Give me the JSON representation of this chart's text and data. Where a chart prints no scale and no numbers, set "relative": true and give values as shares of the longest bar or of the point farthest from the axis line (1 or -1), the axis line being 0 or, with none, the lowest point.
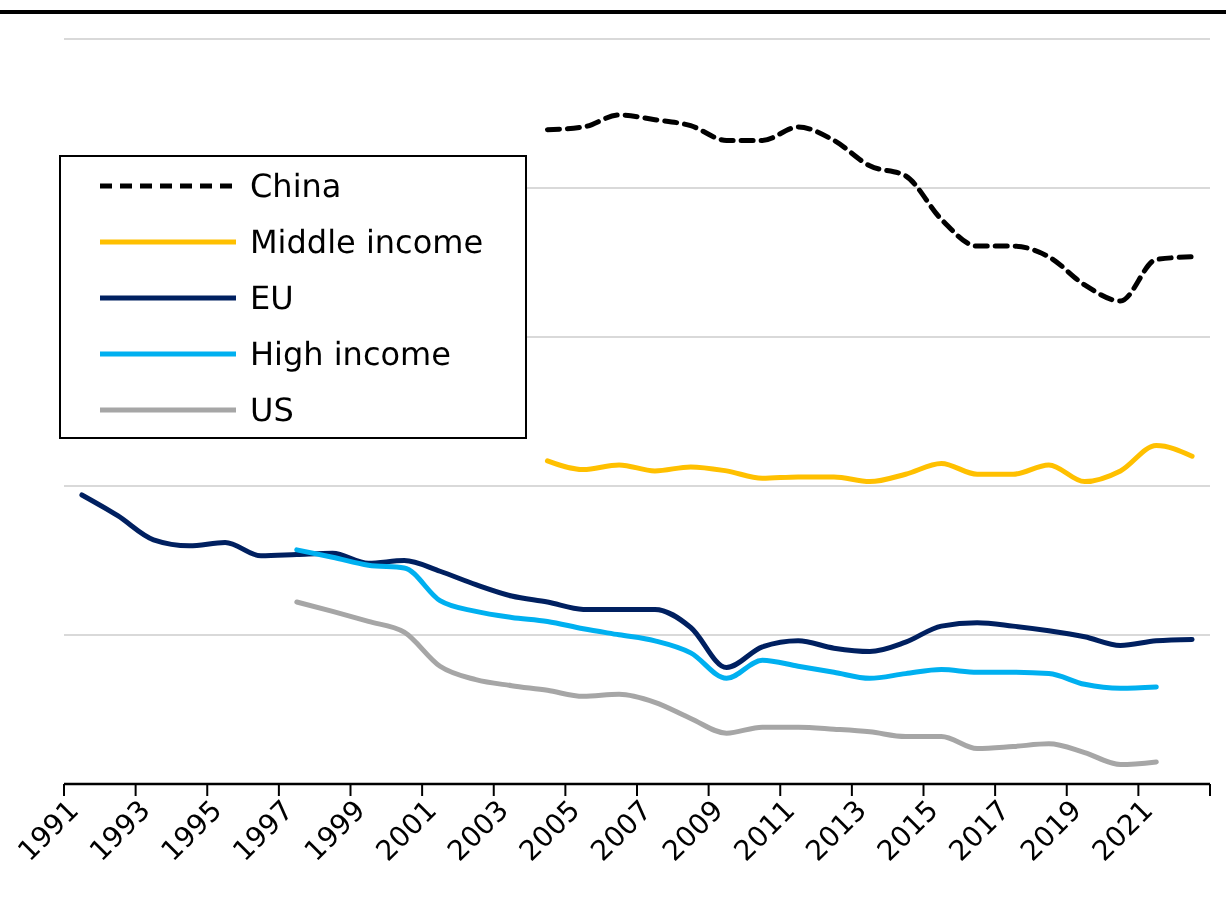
{
  "chart_data": {
    "type": "line",
    "relative": true,
    "grid": "y",
    "legend": "left",
    "line_style": "solid",
    "categories": [
      "1991",
      null,
      "1993",
      null,
      "1995",
      null,
      "1997",
      null,
      "1999",
      null,
      "2001",
      null,
      "2003",
      null,
      "2005",
      null,
      "2007",
      null,
      "2009",
      null,
      "2011",
      null,
      "2013",
      null,
      "2015",
      null,
      "2017",
      null,
      "2019",
      null,
      "2021",
      null
    ],
    "series": [
      {
        "name": "China",
        "color": "#000000",
        "line_style": "dashed",
        "values": [
          null,
          null,
          null,
          null,
          null,
          null,
          null,
          null,
          null,
          null,
          null,
          null,
          null,
          0.978,
          0.982,
          1,
          0.993,
          0.984,
          0.962,
          0.962,
          0.982,
          0.962,
          0.924,
          0.909,
          0.844,
          0.804,
          0.804,
          0.788,
          0.746,
          0.722,
          0.784,
          0.788
        ]
      },
      {
        "name": "Middle income",
        "color": "#ffc000",
        "values": [
          null,
          null,
          null,
          null,
          null,
          null,
          null,
          null,
          null,
          null,
          null,
          null,
          null,
          0.483,
          0.47,
          0.477,
          0.468,
          0.474,
          0.468,
          0.457,
          0.459,
          0.459,
          0.452,
          0.463,
          0.479,
          0.463,
          0.463,
          0.477,
          0.452,
          0.468,
          0.506,
          0.49
        ]
      },
      {
        "name": "EU",
        "color": "#002060",
        "values": [
          0.432,
          0.401,
          0.365,
          0.356,
          0.361,
          0.341,
          0.343,
          0.345,
          0.33,
          0.334,
          0.318,
          0.298,
          0.281,
          0.272,
          0.261,
          0.261,
          0.261,
          0.234,
          0.174,
          0.205,
          0.214,
          0.203,
          0.198,
          0.212,
          0.236,
          0.241,
          0.236,
          0.229,
          0.22,
          0.207,
          0.214,
          0.216
        ]
      },
      {
        "name": "High income",
        "color": "#00b0f0",
        "values": [
          null,
          null,
          null,
          null,
          null,
          null,
          0.35,
          0.339,
          0.327,
          0.323,
          0.274,
          0.258,
          0.249,
          0.243,
          0.232,
          0.223,
          0.214,
          0.196,
          0.158,
          0.185,
          0.176,
          0.167,
          0.158,
          0.165,
          0.171,
          0.167,
          0.167,
          0.165,
          0.149,
          0.143,
          0.145,
          null
        ]
      },
      {
        "name": "US",
        "color": "#a6a6a6",
        "values": [
          null,
          null,
          null,
          null,
          null,
          null,
          0.272,
          0.258,
          0.243,
          0.227,
          0.176,
          0.156,
          0.147,
          0.14,
          0.131,
          0.134,
          0.122,
          0.098,
          0.076,
          0.085,
          0.085,
          0.082,
          0.078,
          0.071,
          0.071,
          0.053,
          0.056,
          0.06,
          0.047,
          0.029,
          0.033,
          null
        ]
      }
    ]
  }
}
